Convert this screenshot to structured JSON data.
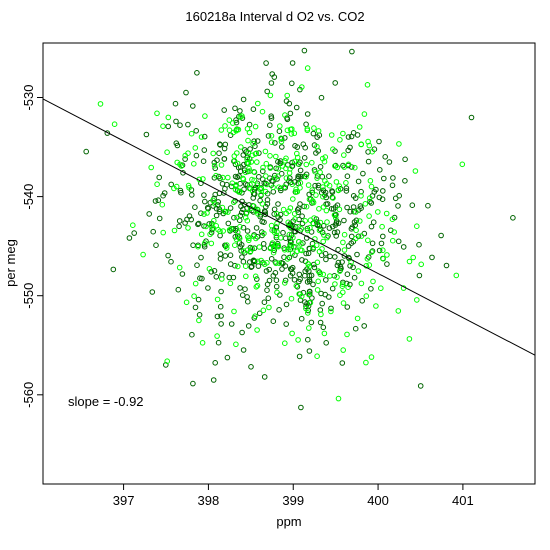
{
  "chart_data": {
    "type": "scatter",
    "title": "160218a   Interval d O2 vs. CO2",
    "xlabel": "ppm",
    "ylabel": "per meg",
    "xlim": [
      396.05,
      401.85
    ],
    "ylim": [
      -569.0,
      -524.5
    ],
    "x_ticks": [
      397,
      398,
      399,
      400,
      401
    ],
    "y_ticks": [
      -560,
      -550,
      -540,
      -530
    ],
    "annotation": "slope =  -0.92",
    "fit_line": {
      "slope": -0.92,
      "points": [
        [
          396.05,
          -530.15
        ],
        [
          401.85,
          -556.0
        ]
      ]
    },
    "marker": "open-circle",
    "series": [
      {
        "color": "#006400",
        "points": []
      },
      {
        "color": "#00ff00",
        "points": []
      }
    ],
    "generated_cloud": {
      "x_mean": 398.85,
      "x_sd": 0.7,
      "y_center": -541.5,
      "y_sd": 6.0,
      "slope": -0.92,
      "dark_count": 650,
      "green_count": 420,
      "dark_color": "#006400",
      "green_color": "#00ff00"
    }
  }
}
